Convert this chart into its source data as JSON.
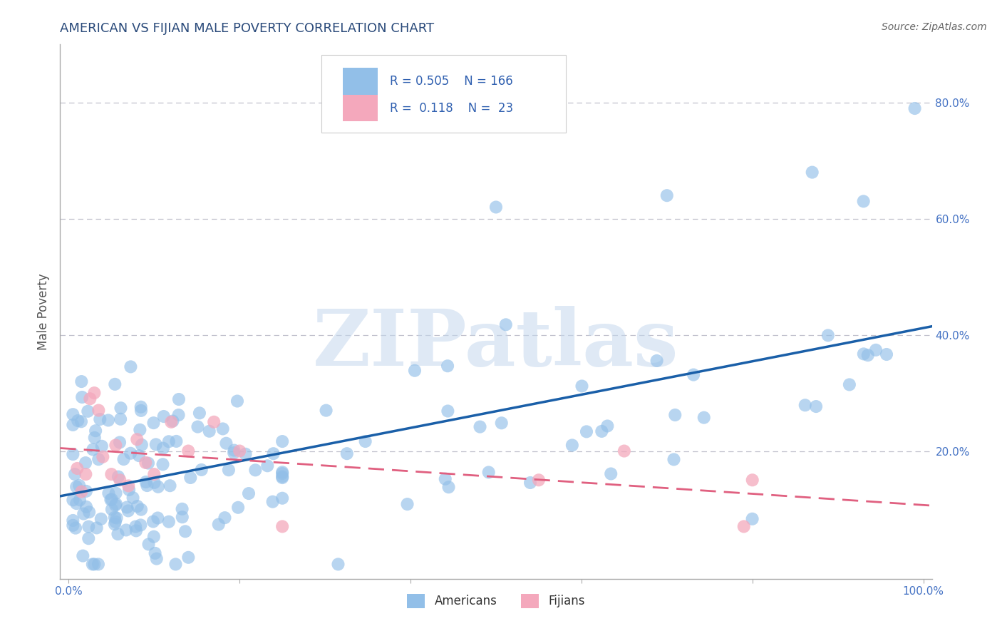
{
  "title": "AMERICAN VS FIJIAN MALE POVERTY CORRELATION CHART",
  "source": "Source: ZipAtlas.com",
  "ylabel": "Male Poverty",
  "watermark": "ZIPatlas",
  "xlim": [
    -0.01,
    1.01
  ],
  "ylim": [
    -0.02,
    0.9
  ],
  "xticks": [
    0.0,
    0.2,
    0.4,
    0.6,
    0.8,
    1.0
  ],
  "yticks": [
    0.0,
    0.2,
    0.4,
    0.6,
    0.8
  ],
  "xtick_labels": [
    "0.0%",
    "",
    "",
    "",
    "",
    "100.0%"
  ],
  "ytick_labels": [
    "",
    "20.0%",
    "40.0%",
    "60.0%",
    "80.0%"
  ],
  "americans_R": 0.505,
  "americans_N": 166,
  "fijians_R": 0.118,
  "fijians_N": 23,
  "american_color": "#92bfe8",
  "fijian_color": "#f4a8bc",
  "american_line_color": "#1a5fa8",
  "fijian_line_color": "#e06080",
  "background_color": "#ffffff",
  "grid_color": "#c0c0cc",
  "title_color": "#2a4a7a",
  "legend_r_color": "#3060b0",
  "legend_label_color": "#333333",
  "source_color": "#666666",
  "axis_color": "#aaaaaa",
  "tick_label_color": "#4472c4"
}
